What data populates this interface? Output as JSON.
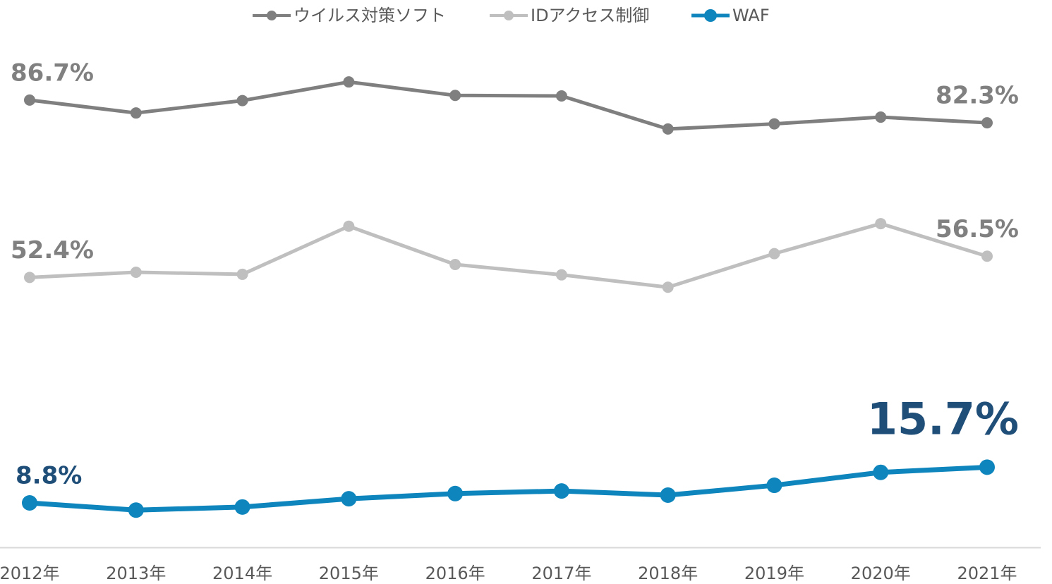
{
  "chart_data": {
    "type": "line",
    "categories": [
      "2012年",
      "2013年",
      "2014年",
      "2015年",
      "2016年",
      "2017年",
      "2018年",
      "2019年",
      "2020年",
      "2021年"
    ],
    "ylim": [
      0,
      98
    ],
    "series": [
      {
        "name": "ウイルス対策ソフト",
        "color": "#7f7f7f",
        "label_color": "#808080",
        "values": [
          86.7,
          84.2,
          86.6,
          90.2,
          87.6,
          87.5,
          81.1,
          82.1,
          83.4,
          82.3
        ],
        "value_labels": [
          "86.7%",
          null,
          null,
          null,
          null,
          null,
          null,
          null,
          null,
          "82.3%"
        ]
      },
      {
        "name": "IDアクセス制御",
        "color": "#bfbfbf",
        "label_color": "#808080",
        "values": [
          52.4,
          53.4,
          53.0,
          62.3,
          54.9,
          52.9,
          50.5,
          57.0,
          62.8,
          56.5
        ],
        "value_labels": [
          "52.4%",
          null,
          null,
          null,
          null,
          null,
          null,
          null,
          null,
          "56.5%"
        ]
      },
      {
        "name": "WAF",
        "color": "#0e86bd",
        "label_color": "#1f4e79",
        "values": [
          8.8,
          7.4,
          8.0,
          9.6,
          10.6,
          11.1,
          10.3,
          12.2,
          14.7,
          15.7
        ],
        "value_labels": [
          "8.8%",
          null,
          null,
          null,
          null,
          null,
          null,
          null,
          null,
          "15.7%"
        ]
      }
    ]
  }
}
